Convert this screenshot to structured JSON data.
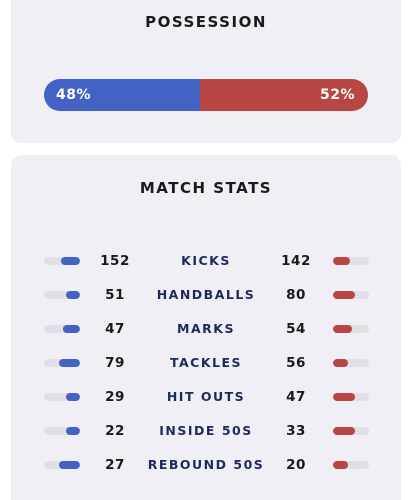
{
  "possession": {
    "title": "POSSESSION",
    "home_label": "48%",
    "away_label": "52%",
    "home_fraction": 0.48,
    "away_fraction": 0.52
  },
  "match_stats": {
    "title": "MATCH STATS",
    "rows": [
      {
        "label": "KICKS",
        "home": "152",
        "away": "142"
      },
      {
        "label": "HANDBALLS",
        "home": "51",
        "away": "80"
      },
      {
        "label": "MARKS",
        "home": "47",
        "away": "54"
      },
      {
        "label": "TACKLES",
        "home": "79",
        "away": "56"
      },
      {
        "label": "HIT OUTS",
        "home": "29",
        "away": "47"
      },
      {
        "label": "INSIDE 50S",
        "home": "22",
        "away": "33"
      },
      {
        "label": "REBOUND 50S",
        "home": "27",
        "away": "20"
      }
    ]
  },
  "colors": {
    "home": "#4462c4",
    "away": "#b84644",
    "card_background": "#efeff5",
    "track": "#dfdfe5",
    "label_text": "#1e2b5a"
  }
}
